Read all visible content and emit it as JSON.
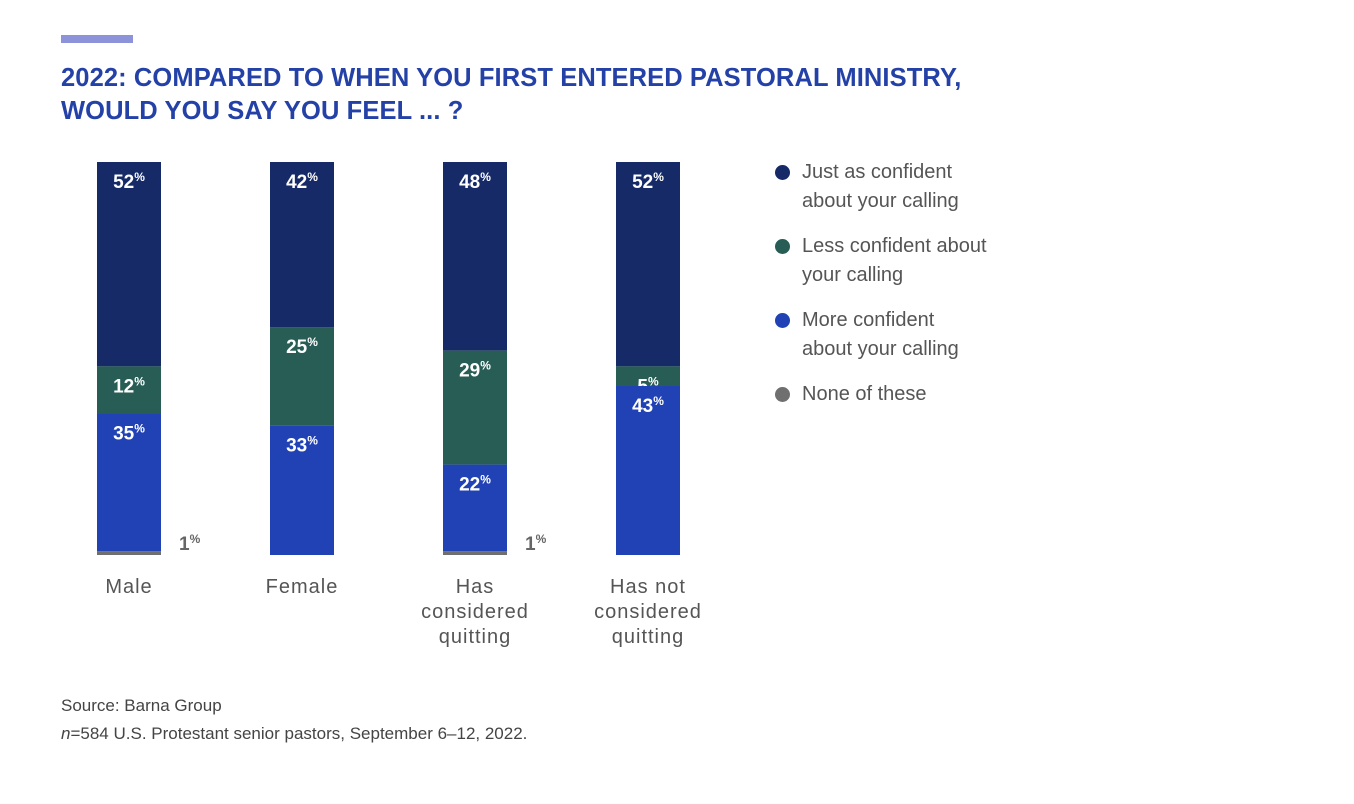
{
  "title_lines": [
    "2022: COMPARED TO WHEN YOU FIRST ENTERED PASTORAL MINISTRY,",
    "WOULD YOU SAY YOU FEEL ... ?"
  ],
  "chart_data": {
    "type": "bar",
    "stacked": true,
    "categories": [
      [
        "Male"
      ],
      [
        "Female"
      ],
      [
        "Has",
        "considered",
        "quitting"
      ],
      [
        "Has not",
        "considered",
        "quitting"
      ]
    ],
    "series": [
      {
        "name": "Just as confident about your calling",
        "color": "#162a68",
        "values": [
          52,
          42,
          48,
          52
        ]
      },
      {
        "name": "Less confident about your calling",
        "color": "#275d55",
        "values": [
          12,
          25,
          29,
          5
        ]
      },
      {
        "name": "More confident about your calling",
        "color": "#2142b5",
        "values": [
          35,
          33,
          22,
          43
        ]
      },
      {
        "name": "None of these",
        "color": "#6f6f6f",
        "values": [
          1,
          0,
          1,
          0
        ]
      }
    ],
    "value_suffix": "%",
    "ylim": [
      0,
      100
    ],
    "legend": "right"
  },
  "legend_items": [
    {
      "lines": [
        "Just as confident",
        "about your calling"
      ],
      "color": "#162a68"
    },
    {
      "lines": [
        "Less confident about",
        "your calling"
      ],
      "color": "#275d55"
    },
    {
      "lines": [
        "More confident",
        "about your calling"
      ],
      "color": "#2142b5"
    },
    {
      "lines": [
        "None of these"
      ],
      "color": "#6f6f6f"
    }
  ],
  "source": {
    "line1": "Source: Barna Group",
    "n_italic": "n",
    "line2_rest": "=584 U.S. Protestant senior pastors, September 6–12, 2022."
  }
}
